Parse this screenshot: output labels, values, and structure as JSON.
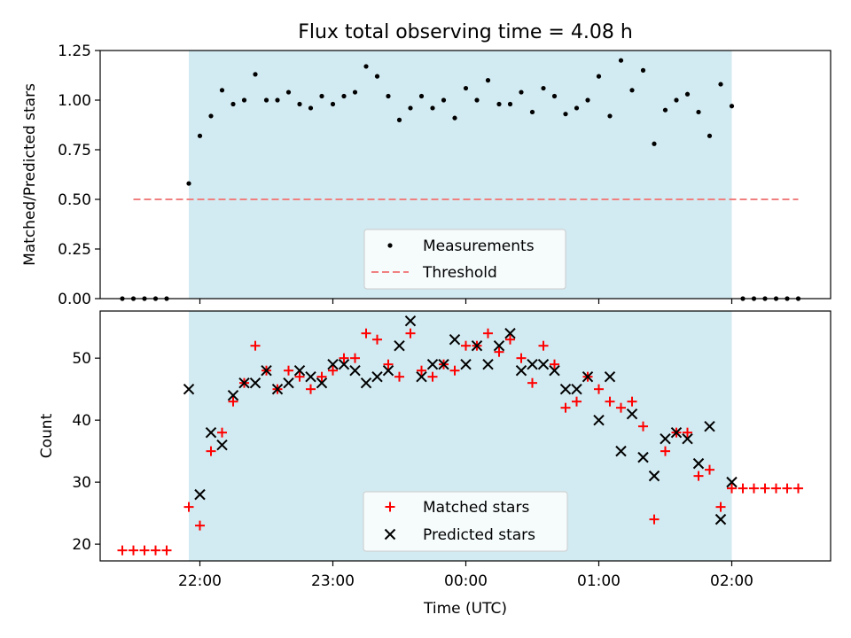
{
  "chart_data": {
    "title": "Flux total observing time = 4.08 h",
    "xlabel": "Time (UTC)",
    "xticks": [
      {
        "label": "22:00",
        "t": 1320
      },
      {
        "label": "23:00",
        "t": 1380
      },
      {
        "label": "00:00",
        "t": 1440
      },
      {
        "label": "01:00",
        "t": 1500
      },
      {
        "label": "02:00",
        "t": 1560
      }
    ],
    "observing_window": {
      "start": "21:55",
      "end": "02:00",
      "color": "#add8e6"
    },
    "top": {
      "type": "scatter",
      "ylabel": "Matched/Predicted stars",
      "ylim": [
        0,
        1.25
      ],
      "yticks": [
        "0.00",
        "0.25",
        "0.50",
        "0.75",
        "1.00",
        "1.25"
      ],
      "legend_position": "lower-center",
      "series": [
        {
          "name": "Measurements",
          "color": "#000000",
          "marker": "dot",
          "points": [
            [
              "21:25",
              0
            ],
            [
              "21:30",
              0
            ],
            [
              "21:35",
              0
            ],
            [
              "21:40",
              0
            ],
            [
              "21:45",
              0
            ],
            [
              "21:55",
              0.58
            ],
            [
              "22:00",
              0.82
            ],
            [
              "22:05",
              0.92
            ],
            [
              "22:10",
              1.05
            ],
            [
              "22:15",
              0.98
            ],
            [
              "22:20",
              1.0
            ],
            [
              "22:25",
              1.13
            ],
            [
              "22:30",
              1.0
            ],
            [
              "22:35",
              1.0
            ],
            [
              "22:40",
              1.04
            ],
            [
              "22:45",
              0.98
            ],
            [
              "22:50",
              0.96
            ],
            [
              "22:55",
              1.02
            ],
            [
              "23:00",
              0.98
            ],
            [
              "23:05",
              1.02
            ],
            [
              "23:10",
              1.04
            ],
            [
              "23:15",
              1.17
            ],
            [
              "23:20",
              1.12
            ],
            [
              "23:25",
              1.02
            ],
            [
              "23:30",
              0.9
            ],
            [
              "23:35",
              0.96
            ],
            [
              "23:40",
              1.02
            ],
            [
              "23:45",
              0.96
            ],
            [
              "23:50",
              1.0
            ],
            [
              "23:55",
              0.91
            ],
            [
              "00:00",
              1.06
            ],
            [
              "00:05",
              1.0
            ],
            [
              "00:10",
              1.1
            ],
            [
              "00:15",
              0.98
            ],
            [
              "00:20",
              0.98
            ],
            [
              "00:25",
              1.04
            ],
            [
              "00:30",
              0.94
            ],
            [
              "00:35",
              1.06
            ],
            [
              "00:40",
              1.02
            ],
            [
              "00:45",
              0.93
            ],
            [
              "00:50",
              0.96
            ],
            [
              "00:55",
              1.0
            ],
            [
              "01:00",
              1.12
            ],
            [
              "01:05",
              0.92
            ],
            [
              "01:10",
              1.2
            ],
            [
              "01:15",
              1.05
            ],
            [
              "01:20",
              1.15
            ],
            [
              "01:25",
              0.78
            ],
            [
              "01:30",
              0.95
            ],
            [
              "01:35",
              1.0
            ],
            [
              "01:40",
              1.03
            ],
            [
              "01:45",
              0.94
            ],
            [
              "01:50",
              0.82
            ],
            [
              "01:55",
              1.08
            ],
            [
              "02:00",
              0.97
            ],
            [
              "02:05",
              0
            ],
            [
              "02:10",
              0
            ],
            [
              "02:15",
              0
            ],
            [
              "02:20",
              0
            ],
            [
              "02:25",
              0
            ],
            [
              "02:30",
              0
            ]
          ]
        },
        {
          "name": "Threshold",
          "color": "#f08080",
          "style": "dashed",
          "points": [
            [
              "21:30",
              0.5
            ],
            [
              "02:30",
              0.5
            ]
          ]
        }
      ]
    },
    "bottom": {
      "type": "scatter",
      "ylabel": "Count",
      "ylim": [
        17.3,
        57.6
      ],
      "yticks": [
        "20",
        "30",
        "40",
        "50"
      ],
      "legend_position": "lower-center",
      "series": [
        {
          "name": "Matched stars",
          "color": "#ff0000",
          "marker": "plus",
          "points": [
            [
              "21:25",
              19
            ],
            [
              "21:30",
              19
            ],
            [
              "21:35",
              19
            ],
            [
              "21:40",
              19
            ],
            [
              "21:45",
              19
            ],
            [
              "21:55",
              26
            ],
            [
              "22:00",
              23
            ],
            [
              "22:05",
              35
            ],
            [
              "22:10",
              38
            ],
            [
              "22:15",
              43
            ],
            [
              "22:20",
              46
            ],
            [
              "22:25",
              52
            ],
            [
              "22:30",
              48
            ],
            [
              "22:35",
              45
            ],
            [
              "22:40",
              48
            ],
            [
              "22:45",
              47
            ],
            [
              "22:50",
              45
            ],
            [
              "22:55",
              47
            ],
            [
              "23:00",
              48
            ],
            [
              "23:05",
              50
            ],
            [
              "23:10",
              50
            ],
            [
              "23:15",
              54
            ],
            [
              "23:20",
              53
            ],
            [
              "23:25",
              49
            ],
            [
              "23:30",
              47
            ],
            [
              "23:35",
              54
            ],
            [
              "23:40",
              48
            ],
            [
              "23:45",
              47
            ],
            [
              "23:50",
              49
            ],
            [
              "23:55",
              48
            ],
            [
              "00:00",
              52
            ],
            [
              "00:05",
              52
            ],
            [
              "00:10",
              54
            ],
            [
              "00:15",
              51
            ],
            [
              "00:20",
              53
            ],
            [
              "00:25",
              50
            ],
            [
              "00:30",
              46
            ],
            [
              "00:35",
              52
            ],
            [
              "00:40",
              49
            ],
            [
              "00:45",
              42
            ],
            [
              "00:50",
              43
            ],
            [
              "00:55",
              47
            ],
            [
              "01:00",
              45
            ],
            [
              "01:05",
              43
            ],
            [
              "01:10",
              42
            ],
            [
              "01:15",
              43
            ],
            [
              "01:20",
              39
            ],
            [
              "01:25",
              24
            ],
            [
              "01:30",
              35
            ],
            [
              "01:35",
              38
            ],
            [
              "01:40",
              38
            ],
            [
              "01:45",
              31
            ],
            [
              "01:50",
              32
            ],
            [
              "01:55",
              26
            ],
            [
              "02:00",
              29
            ],
            [
              "02:05",
              29
            ],
            [
              "02:10",
              29
            ],
            [
              "02:15",
              29
            ],
            [
              "02:20",
              29
            ],
            [
              "02:25",
              29
            ],
            [
              "02:30",
              29
            ]
          ]
        },
        {
          "name": "Predicted stars",
          "color": "#000000",
          "marker": "x",
          "points": [
            [
              "21:55",
              45
            ],
            [
              "22:00",
              28
            ],
            [
              "22:05",
              38
            ],
            [
              "22:10",
              36
            ],
            [
              "22:15",
              44
            ],
            [
              "22:20",
              46
            ],
            [
              "22:25",
              46
            ],
            [
              "22:30",
              48
            ],
            [
              "22:35",
              45
            ],
            [
              "22:40",
              46
            ],
            [
              "22:45",
              48
            ],
            [
              "22:50",
              47
            ],
            [
              "22:55",
              46
            ],
            [
              "23:00",
              49
            ],
            [
              "23:05",
              49
            ],
            [
              "23:10",
              48
            ],
            [
              "23:15",
              46
            ],
            [
              "23:20",
              47
            ],
            [
              "23:25",
              48
            ],
            [
              "23:30",
              52
            ],
            [
              "23:35",
              56
            ],
            [
              "23:40",
              47
            ],
            [
              "23:45",
              49
            ],
            [
              "23:50",
              49
            ],
            [
              "23:55",
              53
            ],
            [
              "00:00",
              49
            ],
            [
              "00:05",
              52
            ],
            [
              "00:10",
              49
            ],
            [
              "00:15",
              52
            ],
            [
              "00:20",
              54
            ],
            [
              "00:25",
              48
            ],
            [
              "00:30",
              49
            ],
            [
              "00:35",
              49
            ],
            [
              "00:40",
              48
            ],
            [
              "00:45",
              45
            ],
            [
              "00:50",
              45
            ],
            [
              "00:55",
              47
            ],
            [
              "01:00",
              40
            ],
            [
              "01:05",
              47
            ],
            [
              "01:10",
              35
            ],
            [
              "01:15",
              41
            ],
            [
              "01:20",
              34
            ],
            [
              "01:25",
              31
            ],
            [
              "01:30",
              37
            ],
            [
              "01:35",
              38
            ],
            [
              "01:40",
              37
            ],
            [
              "01:45",
              33
            ],
            [
              "01:50",
              39
            ],
            [
              "01:55",
              24
            ],
            [
              "02:00",
              30
            ]
          ]
        }
      ]
    }
  }
}
